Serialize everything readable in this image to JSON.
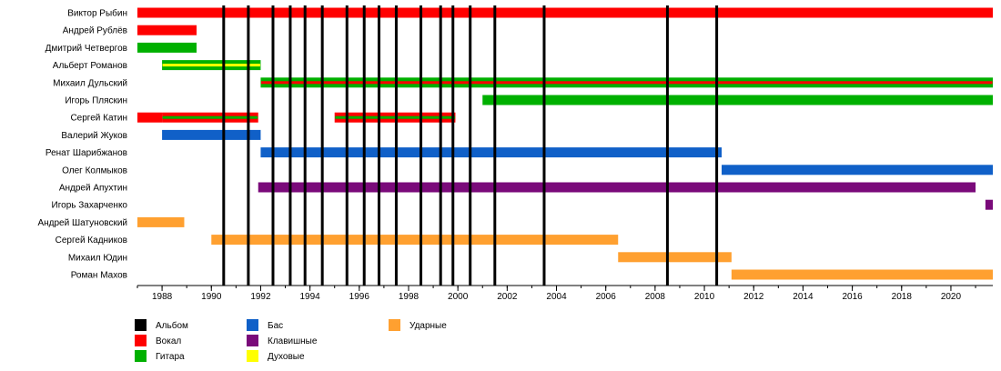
{
  "chart_data": {
    "type": "timeline",
    "title": "",
    "xlabel": "",
    "ylabel": "",
    "xlim": [
      1987,
      2021.7
    ],
    "xticks": [
      1988,
      1990,
      1992,
      1994,
      1996,
      1998,
      2000,
      2002,
      2004,
      2006,
      2008,
      2010,
      2012,
      2014,
      2016,
      2018,
      2020
    ],
    "grid": false,
    "legend_position": "bottom-left",
    "role_colors": {
      "album": "#000000",
      "vocal": "#ff0000",
      "guitar": "#00b000",
      "bass": "#1060c8",
      "keys": "#7a0a7a",
      "wind": "#ffff00",
      "drums": "#ffa030"
    },
    "legend": [
      {
        "role": "album",
        "label": "Альбом"
      },
      {
        "role": "vocal",
        "label": "Вокал"
      },
      {
        "role": "guitar",
        "label": "Гитара"
      },
      {
        "role": "bass",
        "label": "Бас"
      },
      {
        "role": "keys",
        "label": "Клавишные"
      },
      {
        "role": "wind",
        "label": "Духовые"
      },
      {
        "role": "drums",
        "label": "Ударные"
      }
    ],
    "albums": [
      1990.5,
      1991.5,
      1992.5,
      1993.2,
      1993.8,
      1994.5,
      1995.5,
      1996.2,
      1996.8,
      1997.5,
      1998.5,
      1999.3,
      1999.8,
      2000.5,
      2001.5,
      2003.5,
      2008.5,
      2010.5
    ],
    "members": [
      {
        "name": "Виктор Рыбин",
        "bars": [
          {
            "start": 1987,
            "end": 2021.7,
            "color": "vocal"
          }
        ]
      },
      {
        "name": "Андрей Рублёв",
        "bars": [
          {
            "start": 1987,
            "end": 1989.4,
            "color": "vocal"
          }
        ]
      },
      {
        "name": "Дмитрий Четвергов",
        "bars": [
          {
            "start": 1987,
            "end": 1989.4,
            "color": "guitar"
          }
        ]
      },
      {
        "name": "Альберт Романов",
        "bars": [
          {
            "start": 1988,
            "end": 1992,
            "color": "guitar",
            "stripe": "wind"
          }
        ]
      },
      {
        "name": "Михаил Дульский",
        "bars": [
          {
            "start": 1992,
            "end": 2021.7,
            "color": "guitar",
            "stripe": "vocal"
          }
        ]
      },
      {
        "name": "Игорь Пляскин",
        "bars": [
          {
            "start": 2001,
            "end": 2021.7,
            "color": "guitar"
          }
        ]
      },
      {
        "name": "Сергей Катин",
        "bars": [
          {
            "start": 1987,
            "end": 1988,
            "color": "vocal"
          },
          {
            "start": 1988,
            "end": 1991.9,
            "color": "vocal",
            "stripe": "guitar"
          },
          {
            "start": 1995,
            "end": 1999.9,
            "color": "vocal",
            "stripe": "guitar"
          }
        ]
      },
      {
        "name": "Валерий Жуков",
        "bars": [
          {
            "start": 1988,
            "end": 1992,
            "color": "bass"
          }
        ]
      },
      {
        "name": "Ренат Шарибжанов",
        "bars": [
          {
            "start": 1992,
            "end": 2010.7,
            "color": "bass"
          }
        ]
      },
      {
        "name": "Олег Колмыков",
        "bars": [
          {
            "start": 2010.7,
            "end": 2021.7,
            "color": "bass"
          }
        ]
      },
      {
        "name": "Андрей Апухтин",
        "bars": [
          {
            "start": 1991.9,
            "end": 2021,
            "color": "keys"
          }
        ]
      },
      {
        "name": "Игорь Захарченко",
        "bars": [
          {
            "start": 2021.4,
            "end": 2021.7,
            "color": "keys"
          }
        ]
      },
      {
        "name": "Андрей Шатуновский",
        "bars": [
          {
            "start": 1987,
            "end": 1988.9,
            "color": "drums"
          }
        ]
      },
      {
        "name": "Сергей Кадников",
        "bars": [
          {
            "start": 1990,
            "end": 2006.5,
            "color": "drums"
          }
        ]
      },
      {
        "name": "Михаил Юдин",
        "bars": [
          {
            "start": 2006.5,
            "end": 2011.1,
            "color": "drums"
          }
        ]
      },
      {
        "name": "Роман Махов",
        "bars": [
          {
            "start": 2011.1,
            "end": 2021.7,
            "color": "drums"
          }
        ]
      }
    ]
  }
}
